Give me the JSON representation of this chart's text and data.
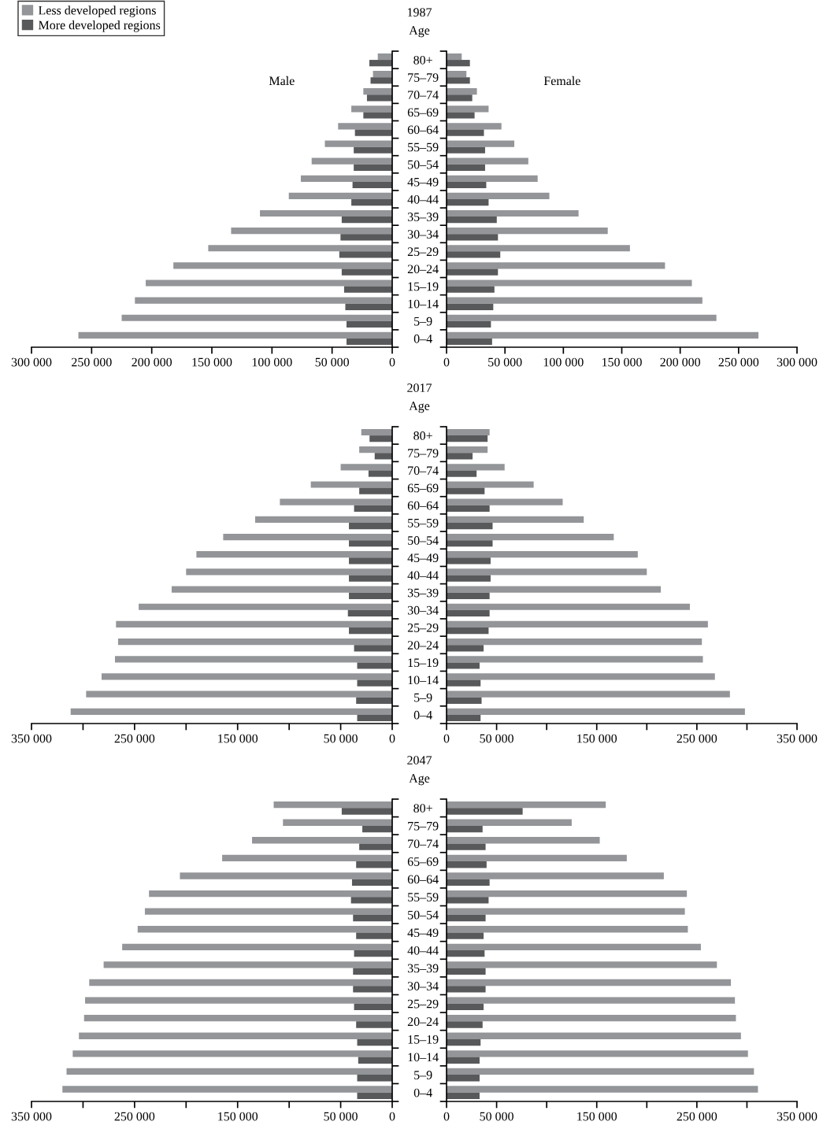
{
  "chart_data": [
    {
      "type": "bar",
      "orientation": "horizontal",
      "tick_labels": "x",
      "legend": "top left",
      "annotations": [
        "Male"
      ],
      "categories": [
        null,
        null,
        null,
        null,
        null,
        null,
        null,
        null,
        null,
        null,
        null,
        null,
        null,
        null,
        null,
        null,
        null
      ],
      "xlim": [
        300000,
        0
      ],
      "xticks": [
        {
          "value": 300000,
          "label": "300 000"
        },
        {
          "value": 250000,
          "label": "250 000"
        },
        {
          "value": 200000,
          "label": "200 000"
        },
        {
          "value": 150000,
          "label": "150 000"
        },
        {
          "value": 100000,
          "label": "100 000"
        },
        {
          "value": 50000,
          "label": "50 000"
        },
        0
      ],
      "series": [
        {
          "name": "Less developed regions",
          "color": "#939598",
          "values": [
            12000,
            16000,
            24000,
            34000,
            45000,
            56000,
            67000,
            76000,
            86000,
            110000,
            134000,
            153000,
            182000,
            205000,
            214000,
            225000,
            261000
          ]
        },
        {
          "name": "More developed regions",
          "color": "#58595b",
          "values": [
            19000,
            18000,
            21000,
            24000,
            31000,
            32000,
            32000,
            33000,
            34000,
            42000,
            43000,
            44000,
            42000,
            40000,
            39000,
            38000,
            38000
          ]
        }
      ]
    },
    {
      "type": "bar",
      "orientation": "horizontal",
      "title": "1987",
      "ylabel": "Age",
      "annotations": [
        "Female"
      ],
      "categories": [
        "80+",
        "75–79",
        "70–74",
        "65–69",
        "60–64",
        "55–59",
        "50–54",
        "45–49",
        "40–44",
        "35–39",
        "30–34",
        "25–29",
        "20–24",
        "15–19",
        "10–14",
        "5–9",
        "0–4"
      ],
      "xlim": [
        0,
        300000
      ],
      "xticks": [
        0,
        {
          "value": 50000,
          "label": "50 000"
        },
        {
          "value": 100000,
          "label": "100 000"
        },
        {
          "value": 150000,
          "label": "150 000"
        },
        {
          "value": 200000,
          "label": "200 000"
        },
        {
          "value": 250000,
          "label": "250 000"
        },
        {
          "value": 300000,
          "label": "300 000"
        }
      ],
      "series": [
        {
          "color": "#939598",
          "values": [
            13000,
            17000,
            26000,
            36000,
            47000,
            58000,
            70000,
            78000,
            88000,
            113000,
            138000,
            157000,
            187000,
            210000,
            219000,
            231000,
            267000
          ]
        },
        {
          "color": "#58595b",
          "values": [
            20000,
            20000,
            22000,
            24000,
            32000,
            33000,
            33000,
            34000,
            36000,
            43000,
            44000,
            46000,
            44000,
            41000,
            40000,
            38000,
            39000
          ]
        }
      ]
    },
    {
      "type": "bar",
      "orientation": "horizontal",
      "tick_labels": "x",
      "categories": [
        null,
        null,
        null,
        null,
        null,
        null,
        null,
        null,
        null,
        null,
        null,
        null,
        null,
        null,
        null,
        null,
        null
      ],
      "xlim": [
        350000,
        0
      ],
      "xticks": [
        {
          "value": 350000,
          "label": "350 000"
        },
        {
          "value": 300000,
          "label": null
        },
        {
          "value": 250000,
          "label": "250 000"
        },
        {
          "value": 200000,
          "label": null
        },
        {
          "value": 150000,
          "label": "150 000"
        },
        {
          "value": 100000,
          "label": null
        },
        {
          "value": 50000,
          "label": "50 000"
        },
        0
      ],
      "series": [
        {
          "color": "#939598",
          "values": [
            30000,
            32000,
            50000,
            79000,
            109000,
            133000,
            164000,
            190000,
            200000,
            214000,
            246000,
            268000,
            266000,
            269000,
            282000,
            297000,
            312000
          ]
        },
        {
          "color": "#58595b",
          "values": [
            22000,
            17000,
            23000,
            32000,
            37000,
            42000,
            42000,
            42000,
            42000,
            42000,
            43000,
            42000,
            37000,
            34000,
            34000,
            35000,
            34000
          ]
        }
      ]
    },
    {
      "type": "bar",
      "orientation": "horizontal",
      "title": "2017",
      "ylabel": "Age",
      "categories": [
        "80+",
        "75–79",
        "70–74",
        "65–69",
        "60–64",
        "55–59",
        "50–54",
        "45–49",
        "40–44",
        "35–39",
        "30–34",
        "25–29",
        "20–24",
        "15–19",
        "10–14",
        "5–9",
        "0–4"
      ],
      "xlim": [
        0,
        350000
      ],
      "xticks": [
        0,
        {
          "value": 50000,
          "label": "50 000"
        },
        {
          "value": 100000,
          "label": null
        },
        {
          "value": 150000,
          "label": "150 000"
        },
        {
          "value": 200000,
          "label": null
        },
        {
          "value": 250000,
          "label": "250 000"
        },
        {
          "value": 300000,
          "label": null
        },
        {
          "value": 350000,
          "label": "350 000"
        }
      ],
      "series": [
        {
          "color": "#939598",
          "values": [
            43000,
            41000,
            58000,
            87000,
            116000,
            137000,
            167000,
            191000,
            200000,
            214000,
            243000,
            261000,
            255000,
            256000,
            268000,
            283000,
            298000
          ]
        },
        {
          "color": "#58595b",
          "values": [
            41000,
            26000,
            30000,
            38000,
            43000,
            46000,
            46000,
            44000,
            44000,
            43000,
            43000,
            42000,
            37000,
            33000,
            34000,
            35000,
            34000
          ]
        }
      ]
    },
    {
      "type": "bar",
      "orientation": "horizontal",
      "tick_labels": "x",
      "categories": [
        null,
        null,
        null,
        null,
        null,
        null,
        null,
        null,
        null,
        null,
        null,
        null,
        null,
        null,
        null,
        null,
        null
      ],
      "xlim": [
        350000,
        0
      ],
      "xticks": [
        {
          "value": 350000,
          "label": "350 000"
        },
        {
          "value": 300000,
          "label": null
        },
        {
          "value": 250000,
          "label": "250 000"
        },
        {
          "value": 200000,
          "label": null
        },
        {
          "value": 150000,
          "label": "150 000"
        },
        {
          "value": 100000,
          "label": null
        },
        {
          "value": 50000,
          "label": "50 000"
        },
        0
      ],
      "series": [
        {
          "color": "#939598",
          "values": [
            115000,
            106000,
            136000,
            165000,
            206000,
            236000,
            240000,
            247000,
            262000,
            280000,
            294000,
            298000,
            299000,
            304000,
            310000,
            316000,
            320000
          ]
        },
        {
          "color": "#58595b",
          "values": [
            49000,
            29000,
            32000,
            35000,
            39000,
            40000,
            38000,
            35000,
            37000,
            38000,
            38000,
            37000,
            35000,
            34000,
            33000,
            34000,
            34000
          ]
        }
      ]
    },
    {
      "type": "bar",
      "orientation": "horizontal",
      "title": "2047",
      "ylabel": "Age",
      "categories": [
        "80+",
        "75–79",
        "70–74",
        "65–69",
        "60–64",
        "55–59",
        "50–54",
        "45–49",
        "40–44",
        "35–39",
        "30–34",
        "25–29",
        "20–24",
        "15–19",
        "10–14",
        "5–9",
        "0–4"
      ],
      "xlim": [
        0,
        350000
      ],
      "xticks": [
        0,
        {
          "value": 50000,
          "label": "50 000"
        },
        {
          "value": 100000,
          "label": null
        },
        {
          "value": 150000,
          "label": "150 000"
        },
        {
          "value": 200000,
          "label": null
        },
        {
          "value": 250000,
          "label": "250 000"
        },
        {
          "value": 300000,
          "label": null
        },
        {
          "value": 350000,
          "label": "350 000"
        }
      ],
      "series": [
        {
          "color": "#939598",
          "values": [
            159000,
            125000,
            153000,
            180000,
            217000,
            240000,
            238000,
            241000,
            254000,
            270000,
            284000,
            288000,
            289000,
            294000,
            301000,
            307000,
            311000
          ]
        },
        {
          "color": "#58595b",
          "values": [
            76000,
            36000,
            39000,
            40000,
            43000,
            42000,
            39000,
            37000,
            38000,
            39000,
            39000,
            37000,
            36000,
            34000,
            33000,
            33000,
            33000
          ]
        }
      ]
    }
  ]
}
